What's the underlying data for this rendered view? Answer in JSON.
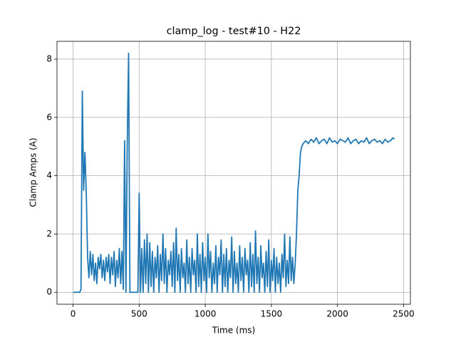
{
  "chart_data": {
    "type": "line",
    "title": "clamp_log - test#10 - H22",
    "xlabel": "Time (ms)",
    "ylabel": "Clamp Amps (A)",
    "x": [
      0,
      10,
      20,
      30,
      40,
      50,
      60,
      70,
      80,
      90,
      100,
      110,
      120,
      130,
      140,
      150,
      160,
      170,
      180,
      190,
      200,
      210,
      220,
      230,
      240,
      250,
      260,
      270,
      280,
      290,
      300,
      310,
      320,
      330,
      340,
      350,
      360,
      370,
      380,
      390,
      400,
      410,
      420,
      430,
      440,
      450,
      460,
      470,
      480,
      490,
      500,
      510,
      520,
      530,
      540,
      550,
      560,
      570,
      580,
      590,
      600,
      610,
      620,
      630,
      640,
      650,
      660,
      670,
      680,
      690,
      700,
      710,
      720,
      730,
      740,
      750,
      760,
      770,
      780,
      790,
      800,
      810,
      820,
      830,
      840,
      850,
      860,
      870,
      880,
      890,
      900,
      910,
      920,
      930,
      940,
      950,
      960,
      970,
      980,
      990,
      1000,
      1010,
      1020,
      1030,
      1040,
      1050,
      1060,
      1070,
      1080,
      1090,
      1100,
      1110,
      1120,
      1130,
      1140,
      1150,
      1160,
      1170,
      1180,
      1190,
      1200,
      1210,
      1220,
      1230,
      1240,
      1250,
      1260,
      1270,
      1280,
      1290,
      1300,
      1310,
      1320,
      1330,
      1340,
      1350,
      1360,
      1370,
      1380,
      1390,
      1400,
      1410,
      1420,
      1430,
      1440,
      1450,
      1460,
      1470,
      1480,
      1490,
      1500,
      1510,
      1520,
      1530,
      1540,
      1550,
      1560,
      1570,
      1580,
      1590,
      1600,
      1610,
      1620,
      1630,
      1640,
      1650,
      1660,
      1670,
      1680,
      1690,
      1700,
      1710,
      1720,
      1730,
      1740,
      1760,
      1780,
      1800,
      1820,
      1840,
      1860,
      1880,
      1900,
      1920,
      1940,
      1960,
      1980,
      2000,
      2020,
      2040,
      2060,
      2080,
      2100,
      2120,
      2140,
      2160,
      2180,
      2200,
      2220,
      2240,
      2260,
      2280,
      2300,
      2320,
      2340,
      2360,
      2380,
      2400,
      2420,
      2430
    ],
    "series": [
      {
        "name": "clamp",
        "color": "#1f77b4",
        "values": [
          0,
          0,
          0,
          0,
          0,
          0,
          0.1,
          6.9,
          3.5,
          4.8,
          3.4,
          1.2,
          0.5,
          1.4,
          0.6,
          1.3,
          0.4,
          1.0,
          0.3,
          1.2,
          0.8,
          1.3,
          0.5,
          1.1,
          0.4,
          1.2,
          0.7,
          1.3,
          0.3,
          1.2,
          0.6,
          1.4,
          0.2,
          1.1,
          0.5,
          1.5,
          0.3,
          1.4,
          0.1,
          5.2,
          0,
          5.2,
          8.2,
          0,
          0,
          0,
          0,
          0,
          0,
          0,
          3.4,
          0,
          1.5,
          0,
          1.8,
          0.3,
          2.0,
          0,
          1.7,
          0.2,
          1.4,
          0,
          1.2,
          0.5,
          1.6,
          0,
          1.3,
          0.4,
          2.0,
          0.3,
          1.5,
          0,
          1.1,
          0.6,
          1.4,
          0.2,
          1.7,
          0,
          2.2,
          0.4,
          1.3,
          0,
          1.5,
          0.5,
          1.0,
          0,
          1.8,
          0.3,
          1.2,
          0,
          1.5,
          0.6,
          1.1,
          0,
          2.0,
          0.2,
          1.3,
          0,
          1.7,
          0.4,
          1.2,
          0,
          2.0,
          0.5,
          1.4,
          0,
          1.0,
          0.3,
          1.6,
          0,
          1.2,
          0.6,
          1.8,
          0,
          1.3,
          0.2,
          1.5,
          0,
          1.1,
          0.5,
          1.9,
          0,
          1.4,
          0.3,
          1.0,
          0,
          1.6,
          0.4,
          1.2,
          0,
          1.5,
          0.6,
          1.1,
          0,
          1.7,
          0.2,
          1.3,
          0,
          2.1,
          0.3,
          1.2,
          0,
          1.6,
          0.5,
          1.0,
          0,
          1.4,
          0.2,
          1.8,
          0,
          1.1,
          0.4,
          1.5,
          0,
          1.2,
          0.3,
          1.0,
          0,
          1.3,
          0.5,
          2.0,
          0.2,
          1.1,
          0.3,
          1.9,
          0.4,
          1.2,
          0.3,
          1.0,
          2.0,
          3.5,
          4.0,
          4.8,
          5.0,
          5.1,
          5.2,
          5.1,
          5.25,
          5.15,
          5.3,
          5.1,
          5.2,
          5.25,
          5.1,
          5.3,
          5.15,
          5.2,
          5.1,
          5.25,
          5.2,
          5.15,
          5.3,
          5.1,
          5.2,
          5.25,
          5.1,
          5.2,
          5.15,
          5.3,
          5.1,
          5.2,
          5.25,
          5.15,
          5.2,
          5.1,
          5.25,
          5.15,
          5.2,
          5.3,
          5.25
        ]
      }
    ],
    "xlim": [
      -121.5,
      2551.5
    ],
    "xticks": [
      0,
      500,
      1000,
      1500,
      2000,
      2500
    ],
    "ylim": [
      -0.41,
      8.61
    ],
    "yticks": [
      0,
      2,
      4,
      6,
      8
    ],
    "grid": true
  }
}
